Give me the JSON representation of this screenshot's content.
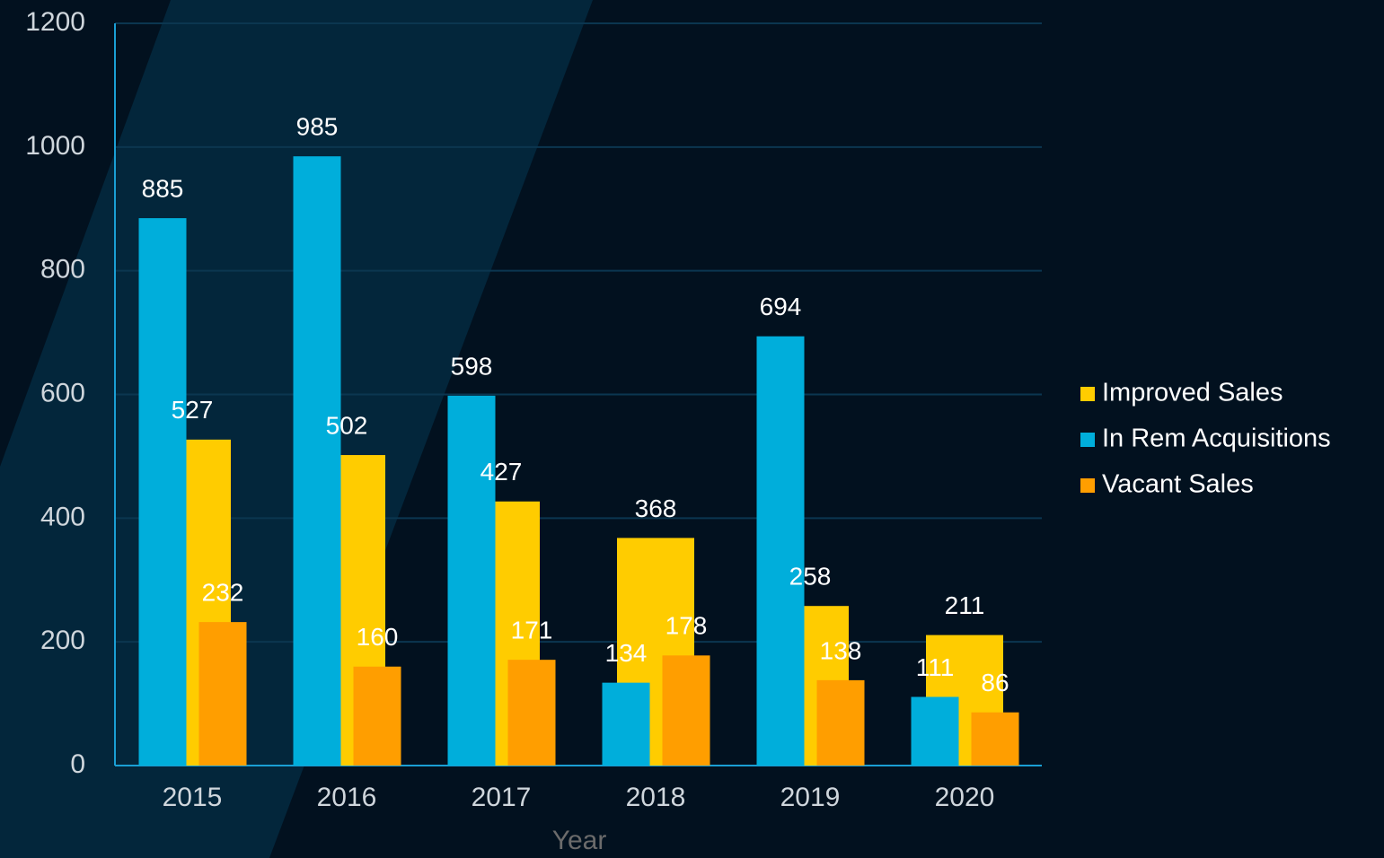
{
  "chart_data": {
    "type": "bar",
    "x_label": "Year",
    "categories": [
      "2015",
      "2016",
      "2017",
      "2018",
      "2019",
      "2020"
    ],
    "series": [
      {
        "name": "Improved Sales",
        "color": "#ffcc00",
        "values": [
          527,
          502,
          427,
          368,
          258,
          211
        ]
      },
      {
        "name": "In Rem Acquisitions",
        "color": "#00aedb",
        "values": [
          885,
          985,
          598,
          134,
          694,
          111
        ]
      },
      {
        "name": "Vacant Sales",
        "color": "#ff9e00",
        "values": [
          232,
          160,
          171,
          178,
          138,
          86
        ]
      }
    ],
    "ylim": [
      0,
      1200
    ],
    "yticks": [
      0,
      200,
      400,
      600,
      800,
      1000,
      1200
    ],
    "grid": true,
    "legend": "right"
  }
}
